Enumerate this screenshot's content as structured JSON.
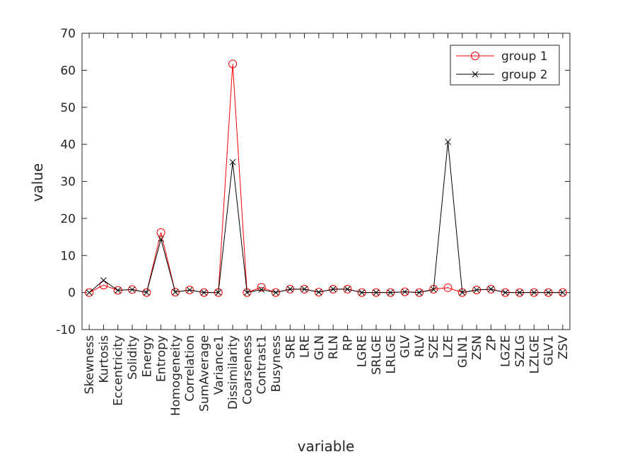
{
  "chart_data": {
    "type": "line",
    "title": "",
    "xlabel": "variable",
    "ylabel": "value",
    "ylim": [
      -10,
      70
    ],
    "yticks": [
      -10,
      0,
      10,
      20,
      30,
      40,
      50,
      60,
      70
    ],
    "grid": false,
    "legend_position": "top-right",
    "categories": [
      "Skewness",
      "Kurtosis",
      "Eccentricity",
      "Solidity",
      "Energy",
      "Entropy",
      "Homogeneity",
      "Correlation",
      "SumAverage",
      "Variance1",
      "Dissimilarity",
      "Coarseness",
      "Contrast1",
      "Busyness",
      "SRE",
      "LRE",
      "GLN",
      "RLN",
      "RP",
      "LGRE",
      "SRLGE",
      "LRLGE",
      "GLV",
      "RLV",
      "SZE",
      "LZE",
      "GLN1",
      "ZSN",
      "ZP",
      "LGZE",
      "SZLG",
      "LZLGE",
      "GLV1",
      "ZSV"
    ],
    "series": [
      {
        "name": "group 1",
        "color": "#ff0000",
        "marker": "circle",
        "values": [
          0.0,
          2.0,
          0.6,
          0.8,
          0.0,
          16.2,
          0.1,
          0.7,
          0.0,
          0.0,
          61.7,
          0.0,
          1.4,
          0.0,
          0.9,
          0.9,
          0.1,
          0.9,
          0.9,
          0.0,
          0.0,
          0.0,
          0.2,
          0.0,
          0.9,
          1.3,
          0.0,
          0.7,
          0.9,
          0.0,
          0.0,
          0.0,
          0.0,
          0.0
        ]
      },
      {
        "name": "group 2",
        "color": "#000000",
        "marker": "x",
        "values": [
          0.0,
          3.3,
          0.6,
          0.8,
          0.0,
          14.4,
          0.1,
          0.7,
          0.0,
          0.0,
          35.2,
          0.0,
          0.8,
          0.0,
          0.9,
          0.9,
          0.1,
          0.9,
          0.9,
          0.0,
          0.0,
          0.0,
          0.2,
          0.0,
          0.8,
          40.7,
          0.0,
          0.7,
          0.9,
          0.0,
          0.0,
          0.0,
          0.0,
          0.0
        ]
      }
    ]
  }
}
